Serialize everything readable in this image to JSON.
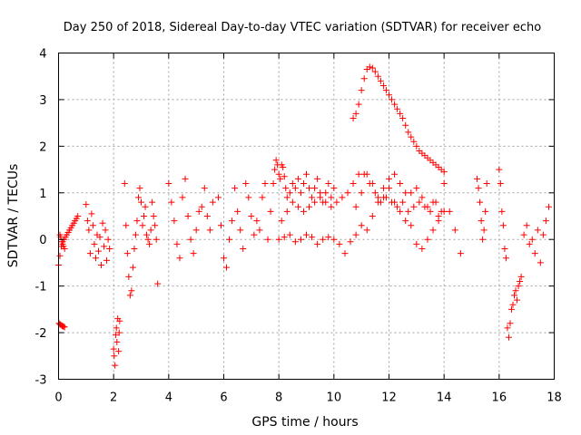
{
  "chart_data": {
    "type": "scatter",
    "title": "Day 250 of 2018, Sidereal Day-to-day VTEC variation (SDTVAR) for receiver echo",
    "xlabel": "GPS time / hours",
    "ylabel": "SDTVAR / TECUs",
    "xlim": [
      0,
      18
    ],
    "ylim": [
      -3,
      4
    ],
    "xticks": [
      "0",
      "2",
      "4",
      "6",
      "8",
      "10",
      "12",
      "14",
      "16",
      "18"
    ],
    "yticks": [
      "-3",
      "-2",
      "-1",
      "0",
      "1",
      "2",
      "3",
      "4"
    ],
    "grid": true,
    "marker": "+",
    "color": "#ff0000",
    "series": [
      {
        "name": "SDTVAR",
        "x": [
          0.0,
          0.05,
          0.1,
          0.15,
          0.2,
          0.25,
          0.3,
          0.35,
          0.4,
          0.45,
          0.5,
          0.55,
          0.6,
          0.65,
          0.7,
          0.02,
          0.05,
          0.08,
          0.12,
          0.15,
          0.18,
          0.22,
          0.05,
          0.08,
          0.12,
          0.15,
          0.18,
          0.22,
          1.0,
          1.05,
          1.1,
          1.15,
          1.2,
          1.25,
          1.3,
          1.35,
          1.4,
          1.45,
          1.5,
          1.55,
          1.6,
          1.65,
          1.7,
          1.75,
          1.8,
          1.85,
          2.0,
          2.02,
          2.05,
          2.08,
          2.1,
          2.12,
          2.15,
          2.18,
          2.2,
          2.22,
          2.4,
          2.45,
          2.5,
          2.55,
          2.6,
          2.65,
          2.7,
          2.75,
          2.8,
          2.85,
          2.9,
          2.95,
          3.0,
          3.05,
          3.1,
          3.15,
          3.2,
          3.25,
          3.3,
          3.35,
          3.4,
          3.45,
          3.5,
          3.55,
          3.6,
          4.0,
          4.1,
          4.2,
          4.3,
          4.4,
          4.5,
          4.6,
          4.7,
          4.8,
          4.9,
          5.0,
          5.1,
          5.2,
          5.3,
          5.4,
          5.5,
          5.6,
          5.8,
          5.9,
          6.0,
          6.1,
          6.2,
          6.3,
          6.4,
          6.5,
          6.6,
          6.7,
          6.8,
          6.9,
          7.0,
          7.1,
          7.2,
          7.3,
          7.4,
          7.5,
          7.6,
          7.7,
          7.8,
          7.85,
          7.9,
          7.95,
          8.0,
          8.05,
          8.1,
          8.15,
          8.2,
          8.25,
          8.3,
          8.4,
          8.5,
          8.6,
          8.7,
          8.8,
          8.9,
          9.0,
          9.1,
          9.2,
          9.3,
          9.4,
          9.5,
          9.6,
          9.7,
          9.8,
          9.9,
          10.0,
          8.0,
          8.2,
          8.4,
          8.6,
          8.8,
          9.0,
          9.2,
          9.4,
          9.6,
          9.8,
          10.0,
          10.2,
          10.4,
          10.6,
          10.8,
          11.0,
          11.2,
          11.4,
          11.6,
          11.8,
          12.0,
          12.2,
          12.4,
          12.6,
          12.8,
          13.0,
          13.2,
          13.4,
          13.6,
          13.8,
          14.0,
          8.1,
          8.3,
          8.5,
          8.7,
          8.9,
          9.1,
          9.3,
          9.5,
          9.7,
          9.9,
          10.1,
          10.3,
          10.5,
          10.7,
          10.9,
          11.1,
          11.3,
          11.5,
          11.7,
          11.9,
          12.1,
          12.3,
          12.5,
          12.7,
          12.9,
          13.1,
          13.3,
          13.5,
          13.7,
          13.9,
          10.7,
          10.8,
          10.9,
          11.0,
          11.1,
          11.2,
          11.3,
          11.4,
          11.5,
          11.6,
          11.7,
          11.8,
          11.9,
          12.0,
          12.1,
          12.2,
          12.3,
          12.4,
          12.5,
          12.6,
          12.7,
          12.8,
          12.9,
          13.0,
          13.1,
          13.2,
          13.3,
          13.4,
          13.5,
          13.6,
          13.7,
          13.8,
          13.9,
          14.0,
          10.8,
          11.0,
          11.2,
          11.4,
          11.6,
          11.8,
          12.0,
          12.2,
          12.4,
          12.6,
          12.8,
          13.0,
          13.2,
          13.4,
          13.6,
          13.8,
          14.0,
          14.2,
          14.4,
          14.6,
          15.2,
          15.25,
          15.3,
          15.35,
          15.4,
          15.45,
          15.5,
          15.55,
          16.0,
          16.05,
          16.1,
          16.15,
          16.2,
          16.25,
          16.3,
          16.35,
          16.4,
          16.45,
          16.5,
          16.55,
          16.6,
          16.65,
          16.7,
          16.75,
          16.8,
          16.9,
          17.0,
          17.1,
          17.2,
          17.3,
          17.4,
          17.5,
          17.6,
          17.7,
          17.8
        ],
        "y": [
          -0.55,
          -0.35,
          -0.15,
          -0.05,
          0.0,
          0.05,
          0.1,
          0.15,
          0.2,
          0.25,
          0.3,
          0.35,
          0.4,
          0.45,
          0.5,
          -1.8,
          -1.82,
          -1.83,
          -1.85,
          -1.86,
          -1.87,
          -1.88,
          0.1,
          0.05,
          -0.05,
          -0.1,
          -0.15,
          -0.2,
          0.75,
          0.4,
          0.2,
          -0.3,
          0.55,
          0.3,
          -0.1,
          -0.4,
          0.1,
          -0.25,
          0.05,
          -0.55,
          0.35,
          -0.15,
          0.2,
          -0.45,
          0.0,
          -0.2,
          -2.35,
          -2.5,
          -2.7,
          -2.05,
          -1.9,
          -2.2,
          -1.7,
          -2.4,
          -2.0,
          -1.75,
          1.2,
          0.3,
          -0.3,
          -0.8,
          -1.2,
          -1.1,
          -0.6,
          -0.2,
          0.1,
          0.4,
          0.9,
          1.1,
          0.8,
          0.3,
          0.5,
          0.7,
          0.1,
          0.0,
          -0.1,
          0.2,
          0.8,
          0.5,
          0.3,
          0.0,
          -0.95,
          1.2,
          0.8,
          0.4,
          -0.1,
          -0.4,
          0.9,
          1.3,
          0.5,
          0.0,
          -0.3,
          0.2,
          0.6,
          0.7,
          1.1,
          0.5,
          0.2,
          0.8,
          0.9,
          0.3,
          -0.4,
          -0.6,
          0.0,
          0.4,
          1.1,
          0.6,
          0.2,
          -0.2,
          1.2,
          0.9,
          0.5,
          0.1,
          0.4,
          0.2,
          0.9,
          1.2,
          0.0,
          0.6,
          1.2,
          1.5,
          1.7,
          1.6,
          1.4,
          1.3,
          1.6,
          1.55,
          1.35,
          1.1,
          0.9,
          1.0,
          1.2,
          1.1,
          1.3,
          1.0,
          1.2,
          1.4,
          1.1,
          0.9,
          1.1,
          1.3,
          1.0,
          0.8,
          1.0,
          1.2,
          0.9,
          1.1,
          0.0,
          0.05,
          0.1,
          -0.05,
          0.0,
          0.1,
          0.05,
          -0.1,
          0.0,
          0.05,
          0.0,
          -0.1,
          -0.3,
          -0.05,
          0.1,
          0.3,
          0.2,
          0.5,
          0.8,
          0.9,
          1.1,
          0.8,
          0.6,
          0.4,
          0.3,
          -0.1,
          -0.2,
          0.0,
          0.2,
          0.4,
          0.6,
          0.4,
          0.6,
          0.8,
          0.7,
          0.6,
          0.7,
          0.8,
          0.9,
          0.8,
          0.7,
          0.8,
          0.9,
          1.0,
          1.2,
          1.4,
          1.4,
          1.2,
          1.0,
          0.8,
          0.9,
          0.8,
          0.7,
          0.8,
          0.6,
          0.7,
          0.8,
          0.7,
          0.6,
          0.8,
          0.6,
          2.6,
          2.7,
          2.9,
          3.2,
          3.45,
          3.65,
          3.7,
          3.68,
          3.6,
          3.5,
          3.4,
          3.3,
          3.2,
          3.1,
          3.0,
          2.9,
          2.8,
          2.7,
          2.6,
          2.45,
          2.3,
          2.2,
          2.1,
          2.0,
          1.9,
          1.85,
          1.8,
          1.75,
          1.7,
          1.65,
          1.6,
          1.55,
          1.5,
          1.45,
          0.7,
          1.0,
          1.4,
          1.2,
          0.9,
          1.1,
          1.3,
          1.4,
          1.2,
          1.0,
          1.0,
          1.1,
          0.9,
          0.7,
          0.8,
          0.5,
          1.2,
          0.6,
          0.2,
          -0.3,
          1.3,
          1.1,
          0.8,
          0.4,
          0.0,
          0.2,
          0.6,
          1.2,
          1.5,
          1.2,
          0.6,
          0.3,
          -0.2,
          -0.4,
          -1.9,
          -2.1,
          -1.8,
          -1.5,
          -1.4,
          -1.2,
          -1.1,
          -1.3,
          -1.0,
          -0.9,
          -0.8,
          0.1,
          0.3,
          -0.1,
          0.0,
          -0.3,
          0.2,
          -0.5,
          0.1,
          0.4,
          0.7
        ]
      }
    ]
  }
}
